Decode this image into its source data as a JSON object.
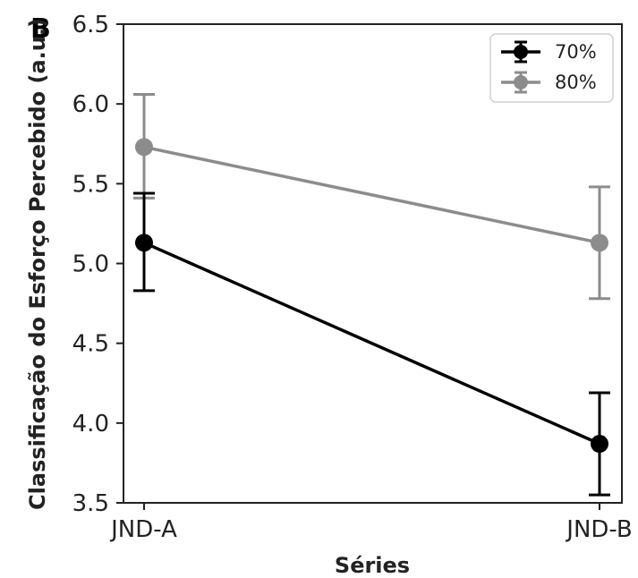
{
  "panel_label": "B",
  "chart_data": {
    "type": "line",
    "categories": [
      "JND-A",
      "JND-B"
    ],
    "xlabel": "Séries",
    "ylabel": "Classificação do Esforço Percebido (a.u.)",
    "ylim": [
      3.5,
      6.5
    ],
    "yticks": [
      "3.5",
      "4.0",
      "4.5",
      "5.0",
      "5.5",
      "6.0",
      "6.5"
    ],
    "grid": false,
    "legend_position": "top-right",
    "series": [
      {
        "name": "70%",
        "color": "#000000",
        "values": [
          5.13,
          3.87
        ],
        "err_low": [
          4.83,
          3.55
        ],
        "err_high": [
          5.44,
          4.19
        ]
      },
      {
        "name": "80%",
        "color": "#8c8c8c",
        "values": [
          5.73,
          5.13
        ],
        "err_low": [
          5.41,
          4.78
        ],
        "err_high": [
          6.06,
          5.48
        ]
      }
    ]
  }
}
